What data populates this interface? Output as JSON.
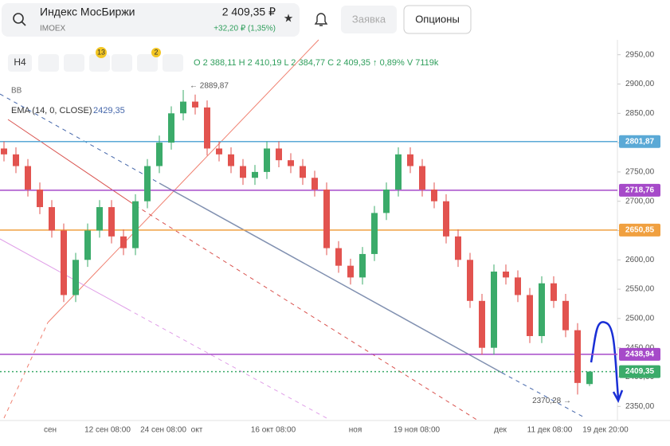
{
  "header": {
    "title": "Индекс МосБиржи",
    "ticker": "IMOEX",
    "price": "2 409,35 ₽",
    "change": "+32,20 ₽ (1,35%)",
    "buttons": [
      "Заявка",
      "Опционы"
    ]
  },
  "toolbar": {
    "interval": "H4",
    "badges": [
      "13",
      "2"
    ]
  },
  "chart_data": {
    "type": "candlestick",
    "indicator": "BB",
    "ema": "EMA (14, 0, CLOSE)",
    "ema_value": "2429,35",
    "ohlc": "O 2 388,11  H 2 410,19  L 2 384,77  C 2 409,35  ↑ 0,89%  V 7119k",
    "up_color": "#3bab6a",
    "down_color": "#e2534f",
    "candles": [
      [
        2790,
        2802,
        2768,
        2780
      ],
      [
        2780,
        2792,
        2748,
        2760
      ],
      [
        2760,
        2772,
        2708,
        2720
      ],
      [
        2720,
        2732,
        2678,
        2690
      ],
      [
        2690,
        2702,
        2638,
        2650
      ],
      [
        2650,
        2662,
        2528,
        2540
      ],
      [
        2540,
        2612,
        2528,
        2600
      ],
      [
        2600,
        2662,
        2588,
        2650
      ],
      [
        2650,
        2702,
        2638,
        2690
      ],
      [
        2690,
        2702,
        2628,
        2640
      ],
      [
        2640,
        2652,
        2608,
        2620
      ],
      [
        2620,
        2712,
        2608,
        2700
      ],
      [
        2700,
        2772,
        2688,
        2760
      ],
      [
        2760,
        2812,
        2748,
        2800
      ],
      [
        2800,
        2862,
        2788,
        2850
      ],
      [
        2850,
        2889.87,
        2838,
        2870
      ],
      [
        2870,
        2882,
        2848,
        2860
      ],
      [
        2860,
        2872,
        2778,
        2790
      ],
      [
        2790,
        2802,
        2768,
        2780
      ],
      [
        2780,
        2792,
        2748,
        2760
      ],
      [
        2760,
        2772,
        2728,
        2740
      ],
      [
        2740,
        2762,
        2728,
        2750
      ],
      [
        2750,
        2802,
        2738,
        2790
      ],
      [
        2790,
        2802,
        2758,
        2770
      ],
      [
        2770,
        2782,
        2748,
        2760
      ],
      [
        2760,
        2772,
        2728,
        2740
      ],
      [
        2740,
        2752,
        2708,
        2720
      ],
      [
        2720,
        2732,
        2608,
        2620
      ],
      [
        2620,
        2632,
        2578,
        2590
      ],
      [
        2590,
        2602,
        2558,
        2570
      ],
      [
        2570,
        2622,
        2558,
        2610
      ],
      [
        2610,
        2692,
        2598,
        2680
      ],
      [
        2680,
        2732,
        2668,
        2720
      ],
      [
        2720,
        2792,
        2708,
        2780
      ],
      [
        2780,
        2792,
        2748,
        2760
      ],
      [
        2760,
        2772,
        2708,
        2720
      ],
      [
        2720,
        2732,
        2688,
        2700
      ],
      [
        2700,
        2712,
        2628,
        2640
      ],
      [
        2640,
        2652,
        2588,
        2600
      ],
      [
        2600,
        2612,
        2518,
        2530
      ],
      [
        2530,
        2542,
        2438,
        2450
      ],
      [
        2450,
        2592,
        2438,
        2580
      ],
      [
        2580,
        2592,
        2558,
        2570
      ],
      [
        2570,
        2582,
        2528,
        2540
      ],
      [
        2540,
        2552,
        2458,
        2470
      ],
      [
        2470,
        2572,
        2458,
        2560
      ],
      [
        2560,
        2572,
        2518,
        2530
      ],
      [
        2530,
        2542,
        2468,
        2480
      ],
      [
        2480,
        2492,
        2370.28,
        2390
      ],
      [
        2388.11,
        2410.19,
        2384.77,
        2409.35
      ]
    ],
    "ylim": [
      2330,
      2989
    ],
    "yticks": [
      {
        "value": 2350,
        "label": "2350,00"
      },
      {
        "value": 2400,
        "label": "2400,00"
      },
      {
        "value": 2450,
        "label": "2450,00"
      },
      {
        "value": 2500,
        "label": "2500,00"
      },
      {
        "value": 2550,
        "label": "2550,00"
      },
      {
        "value": 2600,
        "label": "2600,00"
      },
      {
        "value": 2650,
        "label": "2650,00"
      },
      {
        "value": 2700,
        "label": "2700,00"
      },
      {
        "value": 2750,
        "label": "2750,00"
      },
      {
        "value": 2800,
        "label": "2800,00"
      },
      {
        "value": 2850,
        "label": "2850,00"
      },
      {
        "value": 2900,
        "label": "2900,00"
      },
      {
        "value": 2950,
        "label": "2950,00"
      }
    ],
    "levels": [
      {
        "value": 2801.87,
        "label": "2801,87",
        "color": "#5aa9d6"
      },
      {
        "value": 2718.76,
        "label": "2718,76",
        "color": "#a64ac9"
      },
      {
        "value": 2650.85,
        "label": "2650,85",
        "color": "#f0a040"
      },
      {
        "value": 2438.94,
        "label": "2438,94",
        "color": "#a64ac9"
      },
      {
        "value": 2409.35,
        "label": "2409,35",
        "color": "#3bab6a"
      }
    ],
    "annotations": [
      {
        "value": 2889.87,
        "label": "← 2889,87"
      },
      {
        "value": 2370.28,
        "label": "2370,28 →"
      }
    ],
    "xlabels": [
      "сен",
      "12 сен 08:00",
      "24 сен 08:00",
      "окт",
      "16 окт 08:00",
      "ноя",
      "19 ноя 08:00",
      "дек",
      "11 дек 08:00",
      "19 дек 20:00"
    ]
  }
}
